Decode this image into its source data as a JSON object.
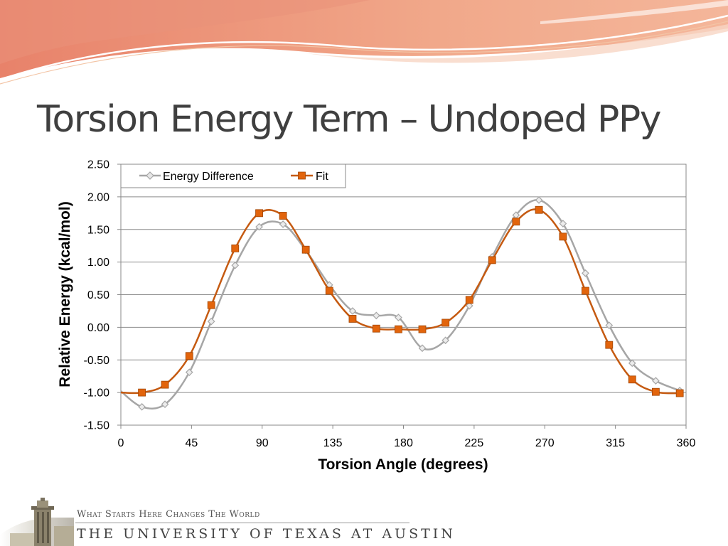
{
  "slide": {
    "title": "Torsion Energy Term – Undoped PPy",
    "footer": {
      "tagline": "What Starts Here Changes The World",
      "university": "THE UNIVERSITY OF TEXAS AT AUSTIN"
    }
  },
  "chart_data": {
    "type": "line",
    "title": "",
    "xlabel": "Torsion Angle (degrees)",
    "ylabel": "Relative Energy (kcal/mol)",
    "xlim": [
      0,
      360
    ],
    "ylim": [
      -1.5,
      2.5
    ],
    "xticks": [
      0,
      45,
      90,
      135,
      180,
      225,
      270,
      315,
      360
    ],
    "yticks": [
      2.5,
      2.0,
      1.5,
      1.0,
      0.5,
      0.0,
      -0.5,
      -1.0,
      -1.5
    ],
    "ytick_labels": [
      "2.50",
      "2.00",
      "1.50",
      "1.00",
      "0.50",
      "0.00",
      "-0.50",
      "-1.00",
      "-1.50"
    ],
    "grid": "horizontal",
    "legend": "top-left",
    "series": [
      {
        "name": "Energy Difference",
        "color": "#a6a6a6",
        "marker": "diamond",
        "x": [
          0,
          13.4,
          28.1,
          43.6,
          57.6,
          72.8,
          88.1,
          103.3,
          117.8,
          132.8,
          147.6,
          162.7,
          176.8,
          192,
          206.8,
          222,
          236.5,
          251.7,
          266.3,
          281.6,
          295.9,
          311,
          325.7,
          340.7,
          356
        ],
        "y": [
          -0.98,
          -1.22,
          -1.18,
          -0.69,
          0.09,
          0.95,
          1.54,
          1.58,
          1.18,
          0.65,
          0.25,
          0.18,
          0.15,
          -0.32,
          -0.2,
          0.33,
          1.08,
          1.72,
          1.95,
          1.59,
          0.83,
          0.03,
          -0.55,
          -0.82,
          -0.97
        ]
      },
      {
        "name": "Fit",
        "color": "#c55a11",
        "marker": "square",
        "x": [
          0,
          13.4,
          28.1,
          43.6,
          57.6,
          72.8,
          88.1,
          103.3,
          117.8,
          132.8,
          147.6,
          162.7,
          176.8,
          192,
          206.8,
          222,
          236.5,
          251.7,
          266.3,
          281.6,
          295.9,
          311,
          325.7,
          340.7,
          356
        ],
        "y": [
          -1.0,
          -1.0,
          -0.88,
          -0.44,
          0.34,
          1.21,
          1.75,
          1.71,
          1.19,
          0.56,
          0.13,
          -0.02,
          -0.03,
          -0.03,
          0.07,
          0.42,
          1.03,
          1.62,
          1.8,
          1.39,
          0.56,
          -0.27,
          -0.8,
          -0.99,
          -1.01
        ]
      }
    ]
  }
}
